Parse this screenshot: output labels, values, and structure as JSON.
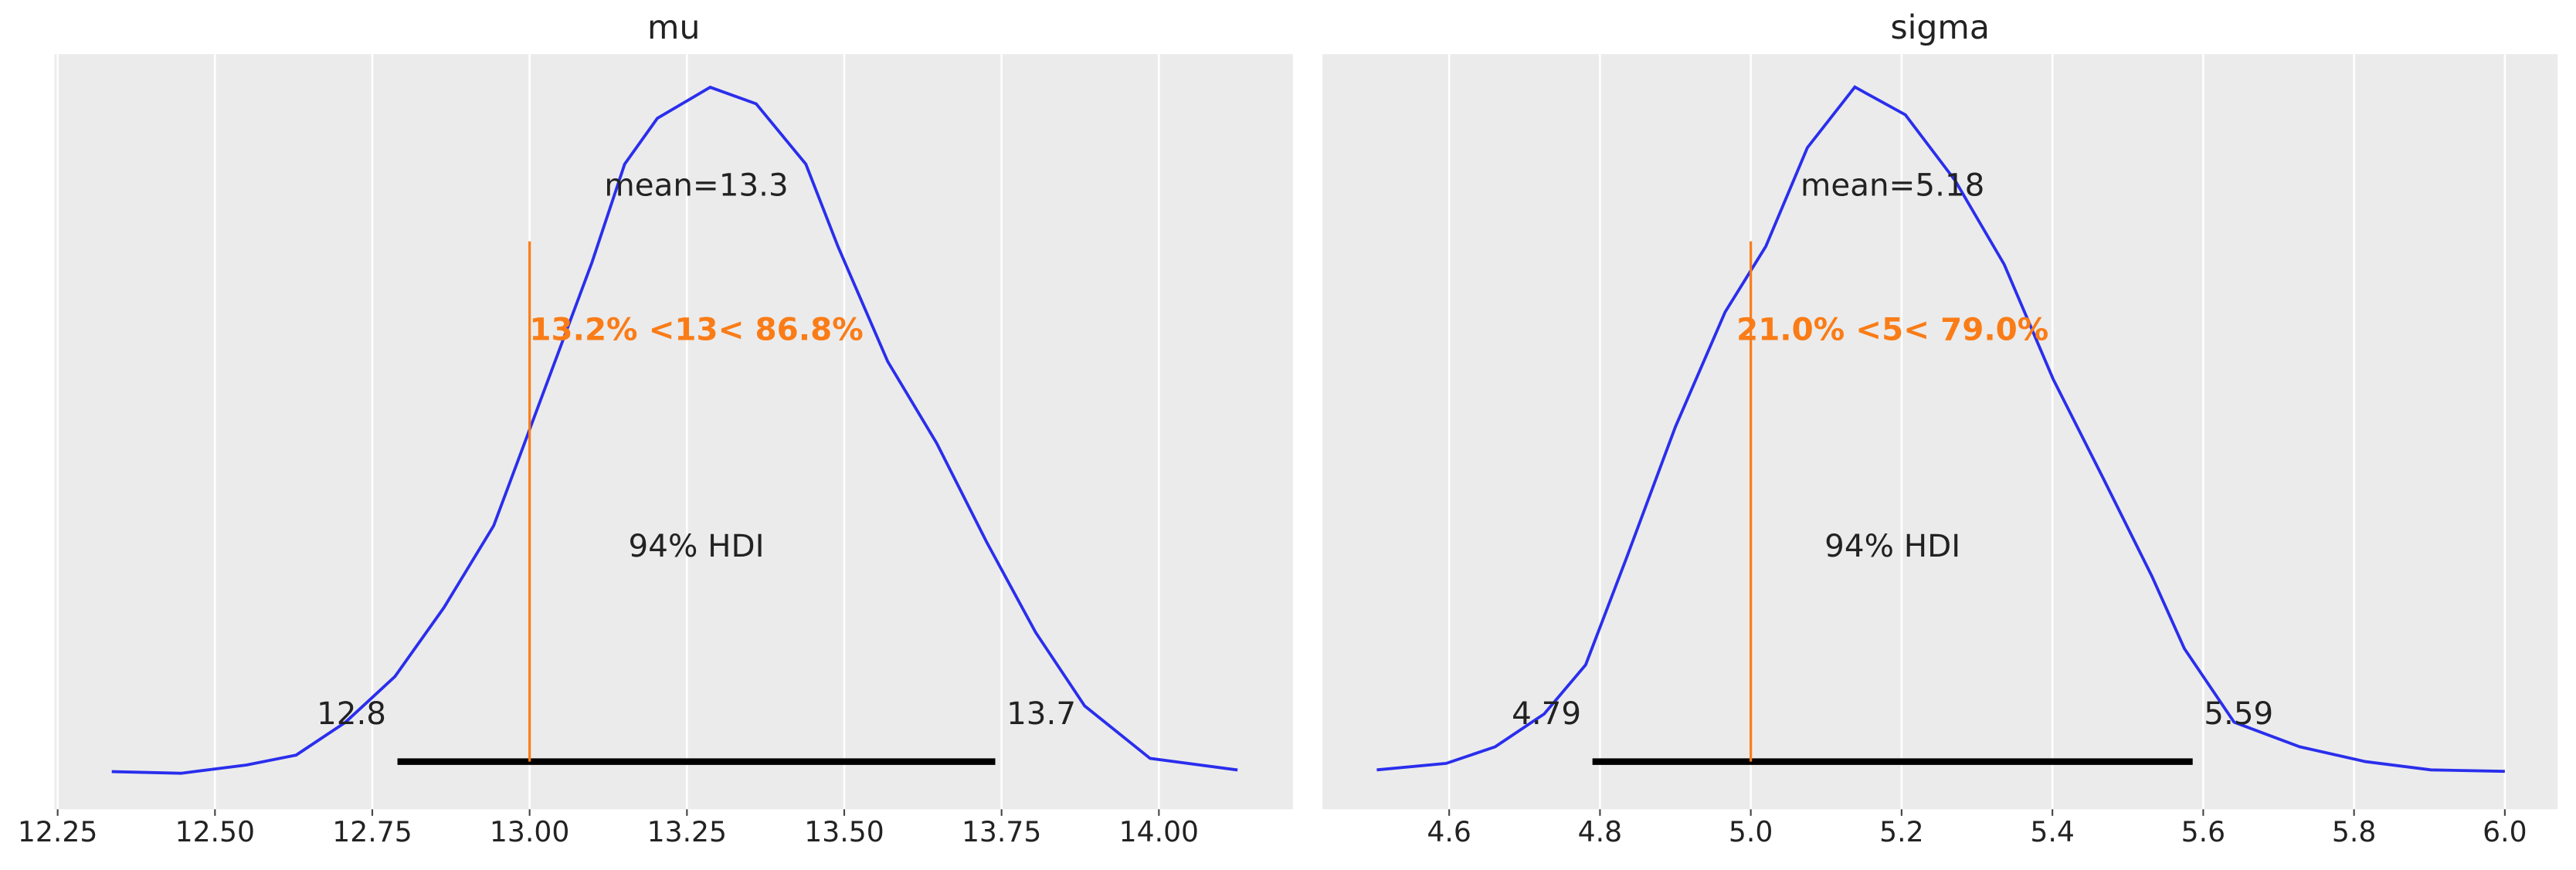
{
  "chart_data": [
    {
      "type": "density",
      "title": "mu",
      "color": "#2a2eec",
      "grid": true,
      "x": [
        12.336,
        12.446,
        12.55,
        12.629,
        12.707,
        12.786,
        12.864,
        12.943,
        13.021,
        13.099,
        13.151,
        13.203,
        13.287,
        13.36,
        13.439,
        13.49,
        13.569,
        13.647,
        13.726,
        13.804,
        13.882,
        13.986,
        14.125
      ],
      "values": [
        0.004,
        0.0,
        0.02,
        0.044,
        0.123,
        0.234,
        0.401,
        0.599,
        0.917,
        1.235,
        1.473,
        1.584,
        1.659,
        1.619,
        1.473,
        1.274,
        0.996,
        0.798,
        0.56,
        0.341,
        0.163,
        0.036,
        0.008
      ],
      "xlim": [
        12.245,
        14.213
      ],
      "ylim": [
        -0.087,
        1.739
      ],
      "xticks": [
        12.25,
        {
          "value": 12.5,
          "label": "12.50"
        },
        12.75,
        {
          "value": 13,
          "label": "13.00"
        },
        13.25,
        {
          "value": 13.5,
          "label": "13.50"
        },
        13.75,
        {
          "value": 14,
          "label": "14.00"
        }
      ],
      "mean_text": "mean=13.3",
      "ref_val": 13,
      "ref_color": "#fa7c17",
      "ref_text": "13.2% <13< 86.8%",
      "hdi_label": "94% HDI",
      "hdi": [
        12.79,
        13.74
      ],
      "hdi_labels": [
        "12.8",
        "13.7"
      ]
    },
    {
      "type": "density",
      "title": "sigma",
      "color": "#2a2eec",
      "grid": true,
      "x": [
        4.504,
        4.596,
        4.661,
        4.726,
        4.781,
        4.835,
        4.9,
        4.966,
        5.02,
        5.075,
        5.138,
        5.205,
        5.271,
        5.336,
        5.401,
        5.467,
        5.532,
        5.575,
        5.641,
        5.728,
        5.815,
        5.902,
        6.0
      ],
      "values": [
        0.009,
        0.027,
        0.073,
        0.164,
        0.3,
        0.595,
        0.959,
        1.277,
        1.459,
        1.732,
        1.9,
        1.823,
        1.641,
        1.409,
        1.091,
        0.818,
        0.545,
        0.345,
        0.141,
        0.073,
        0.032,
        0.009,
        0.005
      ],
      "xlim": [
        4.432,
        6.07
      ],
      "ylim": [
        -0.1,
        1.991
      ],
      "xticks": [
        4.6,
        4.8,
        {
          "value": 5,
          "label": "5.0"
        },
        5.2,
        5.4,
        5.6,
        5.8,
        {
          "value": 6,
          "label": "6.0"
        }
      ],
      "mean_text": "mean=5.18",
      "ref_val": 5,
      "ref_color": "#fa7c17",
      "ref_text": "21.0% <5< 79.0%",
      "hdi_label": "94% HDI",
      "hdi": [
        4.79,
        5.586
      ],
      "hdi_labels": [
        "4.79",
        "5.59"
      ]
    }
  ]
}
